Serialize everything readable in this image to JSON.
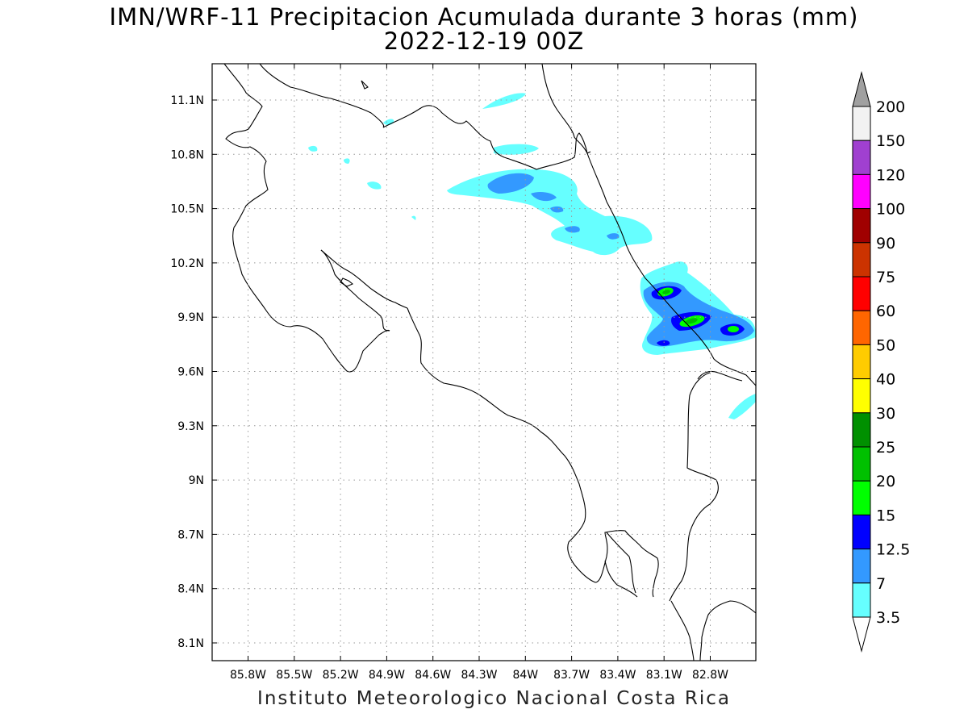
{
  "title_line1": "IMN/WRF-11 Precipitacion Acumulada durante 3 horas (mm)",
  "title_line2": "2022-12-19 00Z",
  "footer": "Instituto Meteorologico Nacional Costa Rica",
  "map": {
    "lon_range": [
      -86.0,
      -82.5
    ],
    "lat_range": [
      8.0,
      11.3
    ],
    "lon_ticks": [
      "85.8W",
      "85.5W",
      "85.2W",
      "84.9W",
      "84.6W",
      "84.3W",
      "84W",
      "83.7W",
      "83.4W",
      "83.1W",
      "82.8W"
    ],
    "lat_ticks": [
      "11.1N",
      "10.8N",
      "10.5N",
      "10.2N",
      "9.9N",
      "9.6N",
      "9.3N",
      "9N",
      "8.7N",
      "8.4N",
      "8.1N"
    ],
    "grid": "dotted"
  },
  "legend": {
    "labels": [
      "200",
      "150",
      "120",
      "100",
      "90",
      "75",
      "60",
      "50",
      "40",
      "30",
      "25",
      "20",
      "15",
      "12.5",
      "7",
      "3.5"
    ],
    "colors": [
      "#a0a0a0",
      "#f2f2f2",
      "#a040d0",
      "#ff00ff",
      "#a00000",
      "#cc3300",
      "#ff0000",
      "#ff6600",
      "#ffcc00",
      "#ffff00",
      "#009000",
      "#00c000",
      "#00ff00",
      "#0000ff",
      "#3399ff",
      "#66ffff",
      "#ffffff"
    ]
  },
  "precip_colors": {
    "3.5": "#66ffff",
    "7": "#3399ff",
    "12.5": "#0000ff",
    "15": "#00ff00",
    "20": "#00c000"
  }
}
